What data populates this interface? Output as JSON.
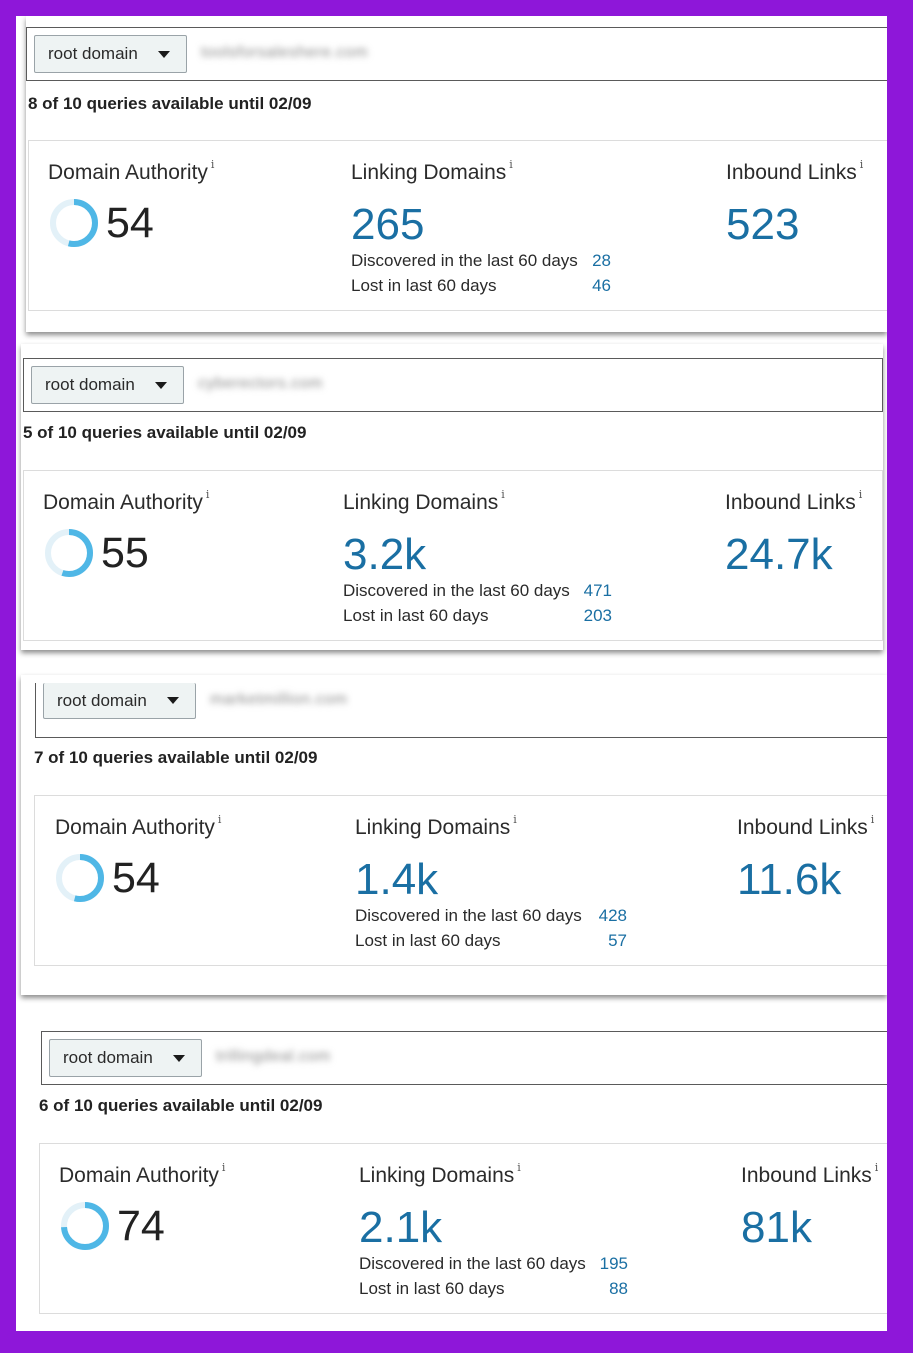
{
  "labels": {
    "dropdown": "root domain",
    "domain_authority": "Domain Authority",
    "linking_domains": "Linking Domains",
    "inbound_links": "Inbound Links",
    "info_marker": "i",
    "discovered": "Discovered in the last 60 days",
    "lost": "Lost in last 60 days"
  },
  "colors": {
    "frame": "#8e17d9",
    "accent_blue": "#1a6fa3",
    "ring": "#4fb7e6",
    "ring_track": "#e3f1f8"
  },
  "panels": [
    {
      "domain": "toolsforsaleshere.com",
      "queries": "8 of 10 queries available until 02/09",
      "da": "54",
      "da_fraction": 0.54,
      "linking_domains": "265",
      "discovered": "28",
      "lost": "46",
      "inbound_links": "523"
    },
    {
      "domain": "cyberectors.com",
      "queries": "5 of 10 queries available until 02/09",
      "da": "55",
      "da_fraction": 0.55,
      "linking_domains": "3.2k",
      "discovered": "471",
      "lost": "203",
      "inbound_links": "24.7k"
    },
    {
      "domain": "marketmillion.com",
      "queries": "7 of 10 queries available until 02/09",
      "da": "54",
      "da_fraction": 0.54,
      "linking_domains": "1.4k",
      "discovered": "428",
      "lost": "57",
      "inbound_links": "11.6k"
    },
    {
      "domain": "trillingdeal.com",
      "queries": "6 of 10 queries available until 02/09",
      "da": "74",
      "da_fraction": 0.74,
      "linking_domains": "2.1k",
      "discovered": "195",
      "lost": "88",
      "inbound_links": "81k"
    }
  ]
}
